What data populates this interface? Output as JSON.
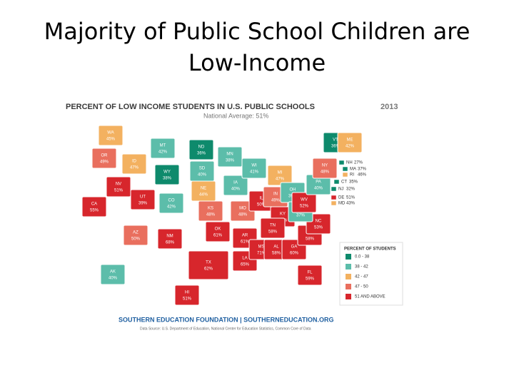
{
  "title": "Majority of Public School Children are Low-Income",
  "map": {
    "title": "PERCENT OF LOW INCOME STUDENTS IN U.S. PUBLIC SCHOOLS",
    "year": "2013",
    "subtitle": "National Average: 51%",
    "legend": {
      "title": "PERCENT OF STUDENTS",
      "items": [
        {
          "label": "0.0 - 38",
          "color": "#0e8a6c"
        },
        {
          "label": "38 - 42",
          "color": "#5cbdaa"
        },
        {
          "label": "42 - 47",
          "color": "#f3b160"
        },
        {
          "label": "47 - 50",
          "color": "#e96f5e"
        },
        {
          "label": "51 AND ABOVE",
          "color": "#d7262c"
        }
      ]
    },
    "states": [
      {
        "abbr": "WA",
        "value": 45,
        "label": "45%",
        "color": "#f3b160"
      },
      {
        "abbr": "OR",
        "value": 49,
        "label": "49%",
        "color": "#e96f5e"
      },
      {
        "abbr": "CA",
        "value": 55,
        "label": "55%",
        "color": "#d7262c"
      },
      {
        "abbr": "NV",
        "value": 51,
        "label": "51%",
        "color": "#d7262c"
      },
      {
        "abbr": "ID",
        "value": 47,
        "label": "47%",
        "color": "#f3b160"
      },
      {
        "abbr": "MT",
        "value": 42,
        "label": "42%",
        "color": "#5cbdaa"
      },
      {
        "abbr": "WY",
        "value": 38,
        "label": "38%",
        "color": "#0e8a6c"
      },
      {
        "abbr": "UT",
        "value": 39,
        "label": "39%",
        "color": "#d7262c"
      },
      {
        "abbr": "CO",
        "value": 42,
        "label": "42%",
        "color": "#5cbdaa"
      },
      {
        "abbr": "AZ",
        "value": 50,
        "label": "50%",
        "color": "#e96f5e"
      },
      {
        "abbr": "NM",
        "value": 68,
        "label": "68%",
        "color": "#d7262c"
      },
      {
        "abbr": "ND",
        "value": 36,
        "label": "36%",
        "color": "#0e8a6c"
      },
      {
        "abbr": "SD",
        "value": 40,
        "label": "40%",
        "color": "#5cbdaa"
      },
      {
        "abbr": "NE",
        "value": 44,
        "label": "44%",
        "color": "#f3b160"
      },
      {
        "abbr": "KS",
        "value": 48,
        "label": "48%",
        "color": "#e96f5e"
      },
      {
        "abbr": "OK",
        "value": 61,
        "label": "61%",
        "color": "#d7262c"
      },
      {
        "abbr": "TX",
        "value": 62,
        "label": "62%",
        "color": "#d7262c"
      },
      {
        "abbr": "MN",
        "value": 38,
        "label": "38%",
        "color": "#5cbdaa"
      },
      {
        "abbr": "IA",
        "value": 40,
        "label": "40%",
        "color": "#5cbdaa"
      },
      {
        "abbr": "MO",
        "value": 48,
        "label": "48%",
        "color": "#e96f5e"
      },
      {
        "abbr": "AR",
        "value": 61,
        "label": "61%",
        "color": "#d7262c"
      },
      {
        "abbr": "LA",
        "value": 65,
        "label": "65%",
        "color": "#d7262c"
      },
      {
        "abbr": "WI",
        "value": 41,
        "label": "41%",
        "color": "#5cbdaa"
      },
      {
        "abbr": "IL",
        "value": 50,
        "label": "50%",
        "color": "#d7262c"
      },
      {
        "abbr": "MI",
        "value": 47,
        "label": "47%",
        "color": "#f3b160"
      },
      {
        "abbr": "IN",
        "value": 49,
        "label": "49%",
        "color": "#e96f5e"
      },
      {
        "abbr": "OH",
        "value": 39,
        "label": "39%",
        "color": "#5cbdaa"
      },
      {
        "abbr": "KY",
        "value": 55,
        "label": "55%",
        "color": "#d7262c"
      },
      {
        "abbr": "TN",
        "value": 58,
        "label": "58%",
        "color": "#d7262c"
      },
      {
        "abbr": "MS",
        "value": 71,
        "label": "71%",
        "color": "#d7262c"
      },
      {
        "abbr": "AL",
        "value": 58,
        "label": "58%",
        "color": "#d7262c"
      },
      {
        "abbr": "GA",
        "value": 60,
        "label": "60%",
        "color": "#d7262c"
      },
      {
        "abbr": "FL",
        "value": 59,
        "label": "59%",
        "color": "#d7262c"
      },
      {
        "abbr": "SC",
        "value": 58,
        "label": "58%",
        "color": "#d7262c"
      },
      {
        "abbr": "NC",
        "value": 53,
        "label": "53%",
        "color": "#d7262c"
      },
      {
        "abbr": "VA",
        "value": 37,
        "label": "37%",
        "color": "#5cbdaa"
      },
      {
        "abbr": "WV",
        "value": 52,
        "label": "52%",
        "color": "#d7262c"
      },
      {
        "abbr": "PA",
        "value": 40,
        "label": "40%",
        "color": "#5cbdaa"
      },
      {
        "abbr": "NY",
        "value": 48,
        "label": "48%",
        "color": "#e96f5e"
      },
      {
        "abbr": "VT",
        "value": 36,
        "label": "36%",
        "color": "#0e8a6c"
      },
      {
        "abbr": "ME",
        "value": 42,
        "label": "42%",
        "color": "#f3b160"
      },
      {
        "abbr": "NH",
        "value": 27,
        "label": "27%",
        "color": "#0e8a6c"
      },
      {
        "abbr": "MA",
        "value": 37,
        "label": "37%",
        "color": "#0e8a6c"
      },
      {
        "abbr": "RI",
        "value": 46,
        "label": "46%",
        "color": "#f3b160"
      },
      {
        "abbr": "CT",
        "value": 35,
        "label": "35%",
        "color": "#0e8a6c"
      },
      {
        "abbr": "NJ",
        "value": 32,
        "label": "32%",
        "color": "#0e8a6c"
      },
      {
        "abbr": "DE",
        "value": 51,
        "label": "51%",
        "color": "#d7262c"
      },
      {
        "abbr": "MD",
        "value": 43,
        "label": "43%",
        "color": "#f3b160"
      },
      {
        "abbr": "AK",
        "value": 40,
        "label": "40%",
        "color": "#5cbdaa"
      },
      {
        "abbr": "HI",
        "value": 51,
        "label": "51%",
        "color": "#d7262c"
      }
    ],
    "footer": "SOUTHERN EDUCATION FOUNDATION | SOUTHERNEDUCATION.ORG",
    "source": "Data Source: U.S. Department of Education, National Center for Education Statistics, Common Core of Data"
  }
}
